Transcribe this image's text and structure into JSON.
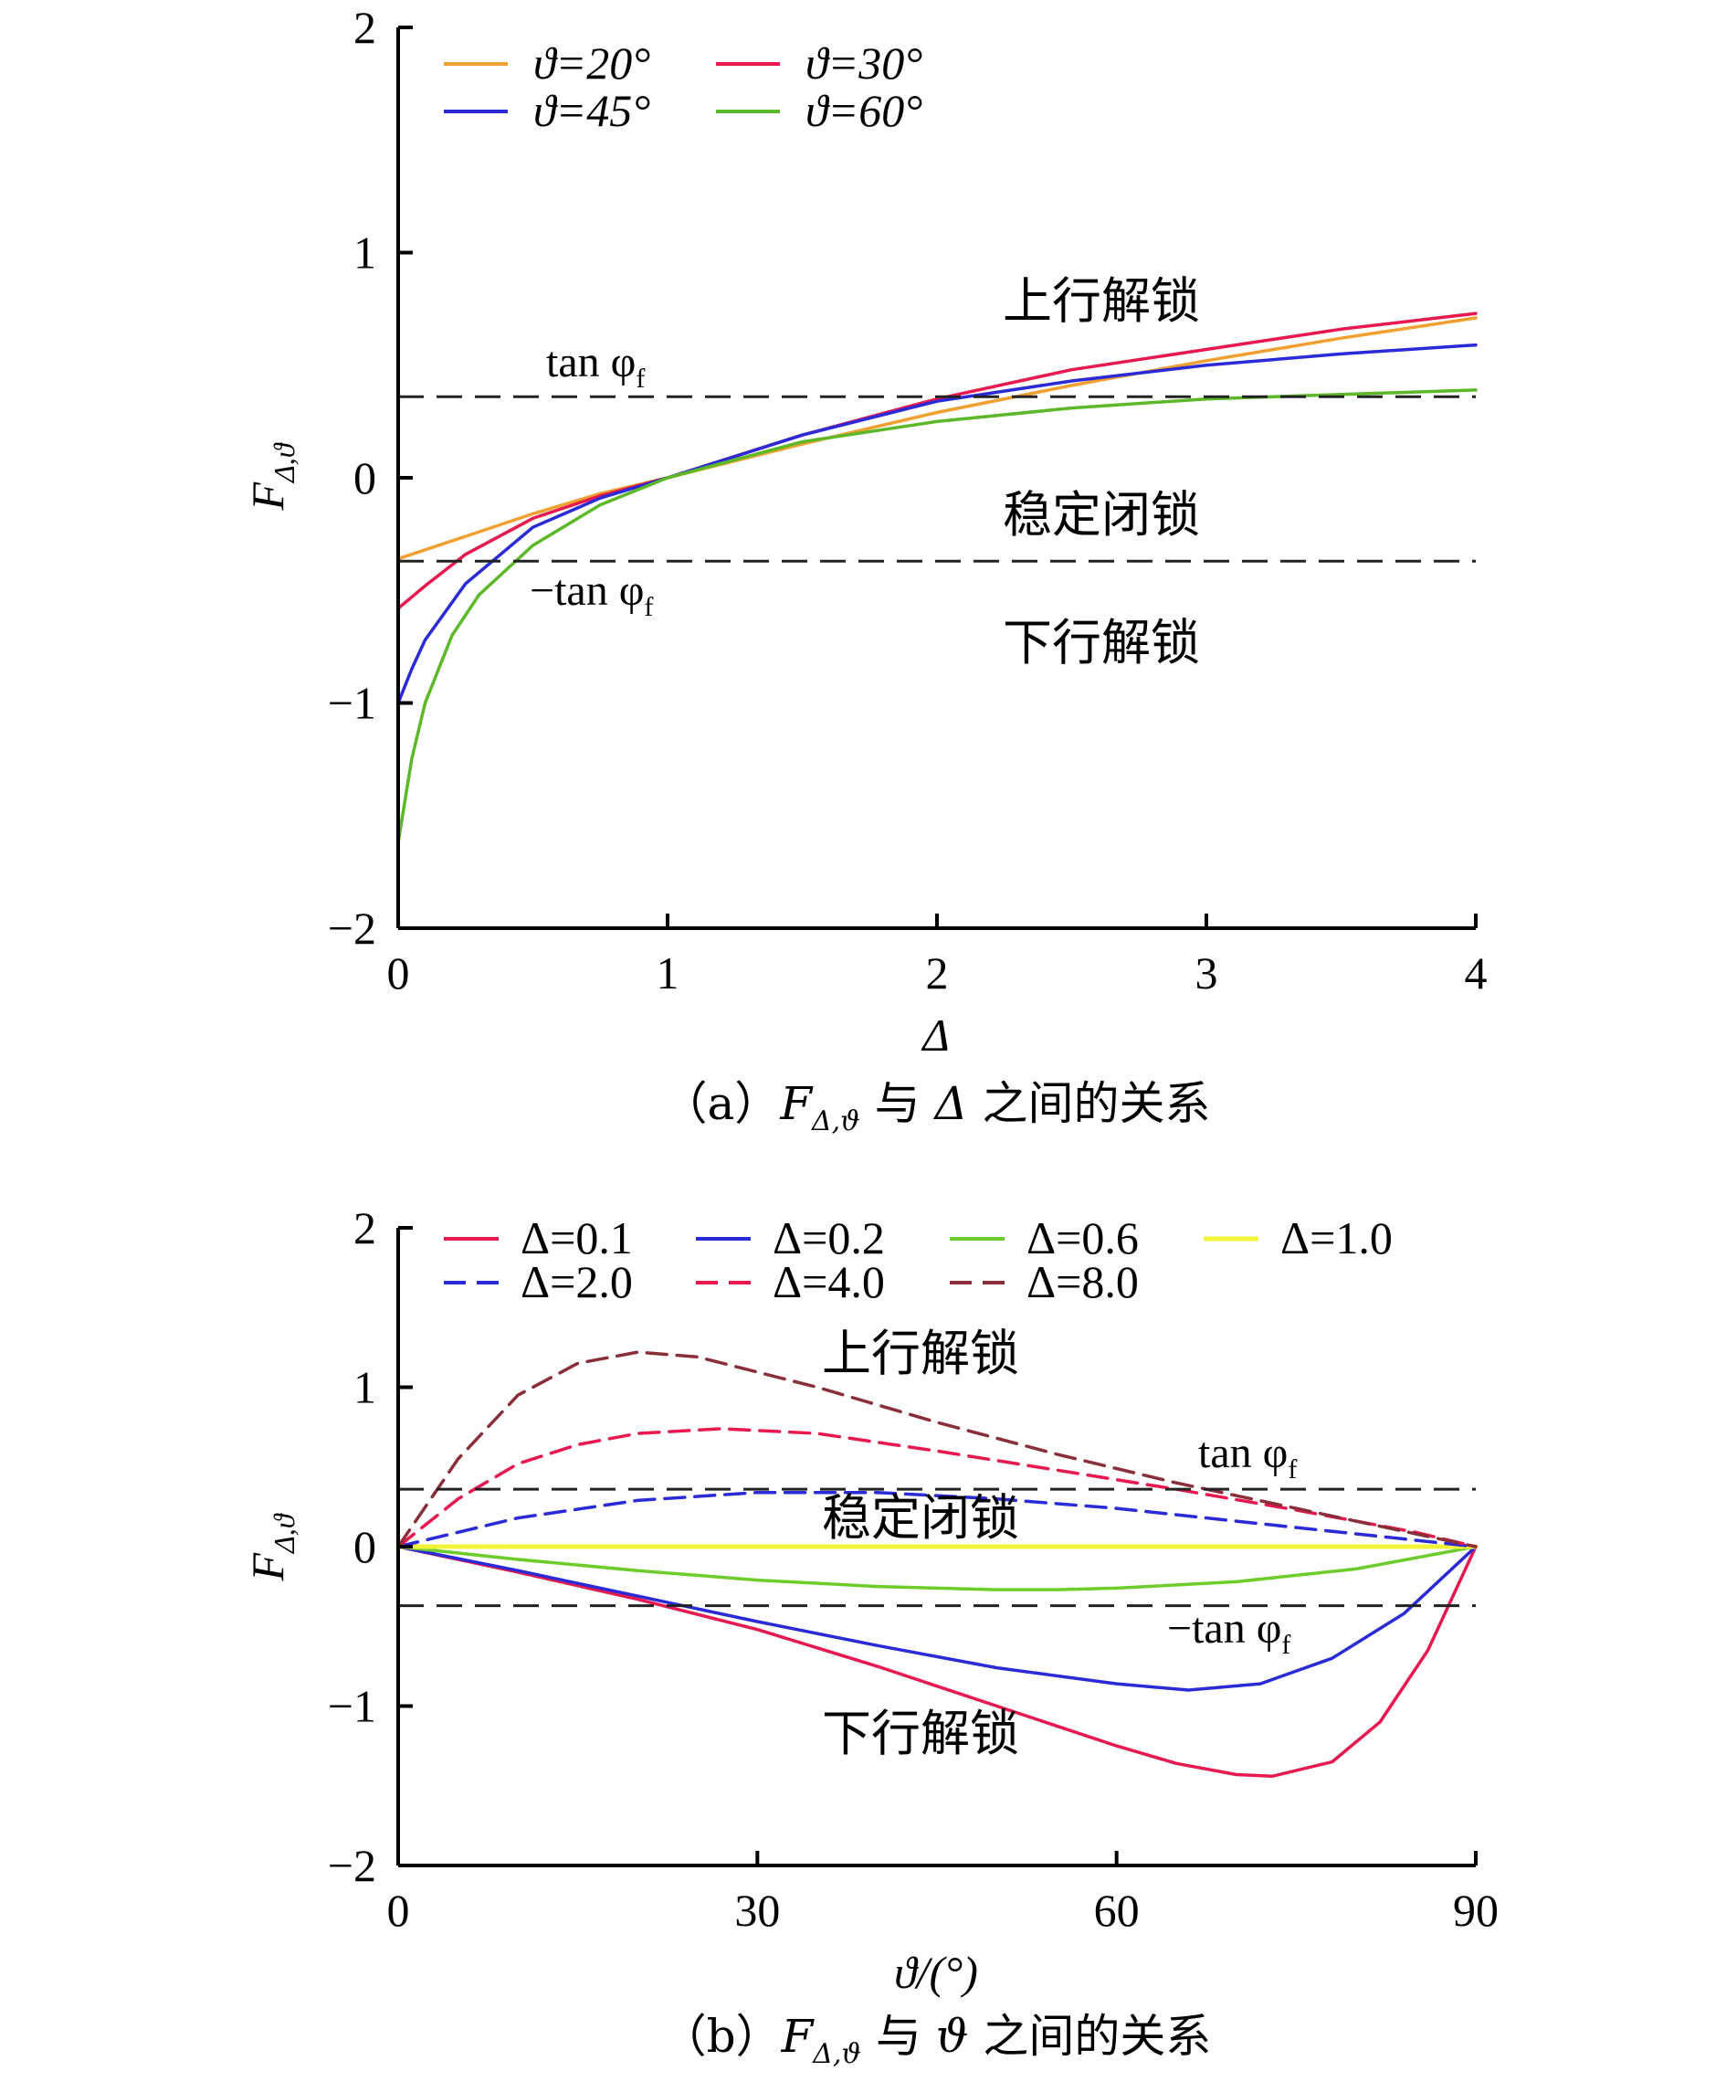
{
  "chart_data": [
    {
      "type": "line",
      "caption": "（a）F_{Δ,ϑ} 与 Δ 之间的关系",
      "caption_parts": {
        "prefix": "（a）",
        "var": "F",
        "sub": "Δ,ϑ",
        "mid": " 与 ",
        "var2": "Δ",
        "suffix": " 之间的关系"
      },
      "xlabel": "Δ",
      "ylabel": {
        "main": "F",
        "sub": "Δ,ϑ"
      },
      "xlim": [
        0,
        4
      ],
      "ylim": [
        -2,
        2
      ],
      "xticks": [
        "0",
        "1",
        "2",
        "3",
        "4"
      ],
      "yticks": [
        "−2",
        "−1",
        "0",
        "1",
        "2"
      ],
      "grid": false,
      "legend_position": "top-left",
      "series": [
        {
          "name": "ϑ=20°",
          "color": "#f0a030",
          "dash": "solid",
          "x": [
            0,
            0.25,
            0.5,
            0.75,
            1,
            1.5,
            2,
            2.5,
            3,
            3.5,
            4
          ],
          "y": [
            -0.36,
            -0.26,
            -0.16,
            -0.07,
            0.0,
            0.15,
            0.29,
            0.41,
            0.52,
            0.62,
            0.71
          ]
        },
        {
          "name": "ϑ=30°",
          "color": "#e8194f",
          "dash": "solid",
          "x": [
            0,
            0.1,
            0.25,
            0.5,
            0.75,
            1,
            1.5,
            2,
            2.5,
            3,
            3.5,
            4
          ],
          "y": [
            -0.58,
            -0.48,
            -0.34,
            -0.18,
            -0.08,
            0.0,
            0.19,
            0.35,
            0.48,
            0.57,
            0.66,
            0.73
          ]
        },
        {
          "name": "ϑ=45°",
          "color": "#2a2ad6",
          "dash": "solid",
          "x": [
            0,
            0.05,
            0.1,
            0.25,
            0.5,
            0.75,
            1,
            1.5,
            2,
            2.5,
            3,
            3.5,
            4
          ],
          "y": [
            -1.0,
            -0.85,
            -0.72,
            -0.47,
            -0.22,
            -0.09,
            0.0,
            0.19,
            0.34,
            0.43,
            0.5,
            0.55,
            0.59
          ]
        },
        {
          "name": "ϑ=60°",
          "color": "#5cb828",
          "dash": "solid",
          "x": [
            0,
            0.05,
            0.1,
            0.2,
            0.3,
            0.5,
            0.75,
            1,
            1.5,
            2,
            2.5,
            3,
            3.5,
            4
          ],
          "y": [
            -1.62,
            -1.25,
            -1.0,
            -0.7,
            -0.52,
            -0.3,
            -0.12,
            0.0,
            0.16,
            0.25,
            0.31,
            0.35,
            0.37,
            0.39
          ]
        }
      ],
      "reference_lines": [
        {
          "y": 0.36,
          "label": "tan φ",
          "sub": "f"
        },
        {
          "y": -0.37,
          "label": "−tan φ",
          "sub": "f"
        }
      ],
      "annotations": [
        "上行解锁",
        "稳定闭锁",
        "下行解锁"
      ]
    },
    {
      "type": "line",
      "caption": "（b）F_{Δ,ϑ} 与 ϑ 之间的关系",
      "caption_parts": {
        "prefix": "（b）",
        "var": "F",
        "sub": "Δ,ϑ",
        "mid": " 与 ",
        "var2": "ϑ",
        "suffix": " 之间的关系"
      },
      "xlabel": "ϑ/(°)",
      "ylabel": {
        "main": "F",
        "sub": "Δ,ϑ"
      },
      "xlim": [
        0,
        90
      ],
      "ylim": [
        -2,
        2
      ],
      "xticks": [
        "0",
        "30",
        "60",
        "90"
      ],
      "yticks": [
        "−2",
        "−1",
        "0",
        "1",
        "2"
      ],
      "grid": false,
      "legend_position": "top-left",
      "series": [
        {
          "name": "Δ=0.1",
          "color": "#e8194f",
          "dash": "solid",
          "x": [
            0,
            10,
            20,
            30,
            40,
            50,
            60,
            65,
            70,
            73,
            78,
            82,
            86,
            90
          ],
          "y": [
            0,
            -0.16,
            -0.33,
            -0.52,
            -0.75,
            -1.0,
            -1.25,
            -1.36,
            -1.43,
            -1.44,
            -1.35,
            -1.1,
            -0.65,
            0
          ]
        },
        {
          "name": "Δ=0.2",
          "color": "#2a2ad6",
          "dash": "solid",
          "x": [
            0,
            10,
            20,
            30,
            40,
            50,
            60,
            66,
            72,
            78,
            84,
            90
          ],
          "y": [
            0,
            -0.15,
            -0.31,
            -0.47,
            -0.62,
            -0.76,
            -0.86,
            -0.9,
            -0.86,
            -0.7,
            -0.42,
            0
          ]
        },
        {
          "name": "Δ=0.6",
          "color": "#6ccc2a",
          "dash": "solid",
          "x": [
            0,
            10,
            20,
            30,
            40,
            50,
            55,
            60,
            70,
            80,
            90
          ],
          "y": [
            0,
            -0.08,
            -0.15,
            -0.21,
            -0.25,
            -0.27,
            -0.27,
            -0.26,
            -0.22,
            -0.14,
            0
          ]
        },
        {
          "name": "Δ=1.0",
          "color": "#f2f23a",
          "dash": "solid",
          "x": [
            0,
            90
          ],
          "y": [
            0,
            0
          ]
        },
        {
          "name": "Δ=2.0",
          "color": "#2a2ad6",
          "dash": "dashed",
          "x": [
            0,
            10,
            20,
            30,
            40,
            50,
            60,
            70,
            80,
            90
          ],
          "y": [
            0,
            0.18,
            0.29,
            0.34,
            0.34,
            0.3,
            0.24,
            0.16,
            0.08,
            0
          ]
        },
        {
          "name": "Δ=4.0",
          "color": "#e8194f",
          "dash": "dashed",
          "x": [
            0,
            5,
            10,
            15,
            20,
            27,
            35,
            45,
            55,
            65,
            75,
            85,
            90
          ],
          "y": [
            0,
            0.3,
            0.52,
            0.64,
            0.71,
            0.74,
            0.71,
            0.6,
            0.48,
            0.36,
            0.23,
            0.09,
            0
          ]
        },
        {
          "name": "Δ=8.0",
          "color": "#8a2e3a",
          "dash": "dashed",
          "x": [
            0,
            5,
            10,
            15,
            20,
            25,
            35,
            45,
            55,
            65,
            75,
            85,
            90
          ],
          "y": [
            0,
            0.55,
            0.95,
            1.15,
            1.22,
            1.19,
            1.0,
            0.78,
            0.58,
            0.4,
            0.24,
            0.08,
            0
          ]
        }
      ],
      "reference_lines": [
        {
          "y": 0.36,
          "label": "tan φ",
          "sub": "f"
        },
        {
          "y": -0.37,
          "label": "−tan φ",
          "sub": "f"
        }
      ],
      "annotations": [
        "上行解锁",
        "稳定闭锁",
        "下行解锁"
      ]
    }
  ]
}
